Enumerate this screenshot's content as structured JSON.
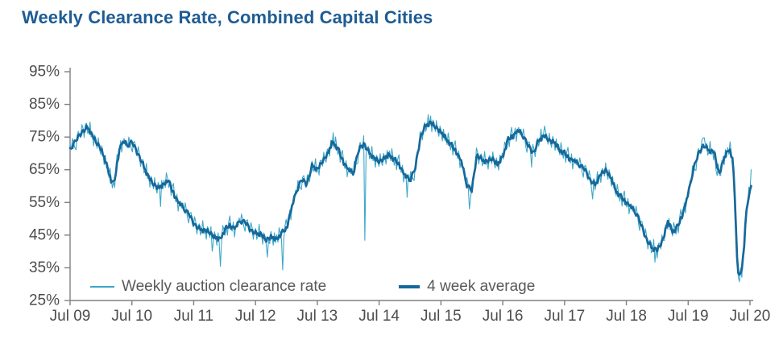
{
  "page": {
    "title": "Weekly Clearance Rate, Combined Capital Cities"
  },
  "colors": {
    "title_text": "#1e5c94",
    "axis_line": "#808080",
    "tick_label": "#4d4d4d",
    "legend_text": "#595959",
    "weekly_line": "#3da7c9",
    "avg_line": "#16689a",
    "background": "#ffffff"
  },
  "chart_data": {
    "type": "line",
    "title": "Weekly Clearance Rate, Combined Capital Cities",
    "grid": "off",
    "legend_position": "bottom-inside",
    "y_axis": {
      "min": 25,
      "max": 95,
      "tick_step": 10,
      "format": "percent",
      "ticks": [
        {
          "label": "95%",
          "value": 95
        },
        {
          "label": "85%",
          "value": 85
        },
        {
          "label": "75%",
          "value": 75
        },
        {
          "label": "65%",
          "value": 65
        },
        {
          "label": "55%",
          "value": 55
        },
        {
          "label": "45%",
          "value": 45
        },
        {
          "label": "35%",
          "value": 35
        },
        {
          "label": "25%",
          "value": 25
        }
      ]
    },
    "x_axis": {
      "unit": "years since Jul 2009",
      "range": [
        0,
        11
      ],
      "ticks": [
        {
          "label": "Jul 09",
          "t": 0
        },
        {
          "label": "Jul 10",
          "t": 1
        },
        {
          "label": "Jul 11",
          "t": 2
        },
        {
          "label": "Jul 12",
          "t": 3
        },
        {
          "label": "Jul 13",
          "t": 4
        },
        {
          "label": "Jul 14",
          "t": 5
        },
        {
          "label": "Jul 15",
          "t": 6
        },
        {
          "label": "Jul 16",
          "t": 7
        },
        {
          "label": "Jul 17",
          "t": 8
        },
        {
          "label": "Jul 18",
          "t": 9
        },
        {
          "label": "Jul 19",
          "t": 10
        },
        {
          "label": "Jul 20",
          "t": 11
        }
      ]
    },
    "legend": [
      {
        "label": "Weekly auction clearance rate",
        "style": "thin"
      },
      {
        "label": "4 week average",
        "style": "thick"
      }
    ],
    "series": [
      {
        "name": "Weekly auction clearance rate",
        "derived_from": "4 week average control points plus weekly_noise_cycle and weekly_outliers"
      },
      {
        "name": "4 week average",
        "points": [
          [
            0,
            71.5
          ],
          [
            0.08,
            73.5
          ],
          [
            0.17,
            76
          ],
          [
            0.25,
            77.5
          ],
          [
            0.29,
            78
          ],
          [
            0.33,
            76.5
          ],
          [
            0.42,
            73.5
          ],
          [
            0.5,
            71.5
          ],
          [
            0.58,
            67
          ],
          [
            0.67,
            61.5
          ],
          [
            0.71,
            60.5
          ],
          [
            0.79,
            70.5
          ],
          [
            0.83,
            73
          ],
          [
            0.88,
            73.5
          ],
          [
            0.92,
            72.5
          ],
          [
            1,
            73.5
          ],
          [
            1.08,
            70.5
          ],
          [
            1.17,
            67
          ],
          [
            1.25,
            63.5
          ],
          [
            1.33,
            61
          ],
          [
            1.42,
            59.5
          ],
          [
            1.5,
            60
          ],
          [
            1.58,
            62
          ],
          [
            1.67,
            58
          ],
          [
            1.75,
            55
          ],
          [
            1.83,
            53.5
          ],
          [
            1.92,
            51.5
          ],
          [
            2,
            48.5
          ],
          [
            2.08,
            47
          ],
          [
            2.17,
            46.5
          ],
          [
            2.25,
            46
          ],
          [
            2.33,
            44.5
          ],
          [
            2.42,
            43.5
          ],
          [
            2.5,
            46.5
          ],
          [
            2.58,
            48
          ],
          [
            2.67,
            47
          ],
          [
            2.75,
            49.5
          ],
          [
            2.83,
            49
          ],
          [
            2.92,
            46.5
          ],
          [
            3,
            45.5
          ],
          [
            3.08,
            45.5
          ],
          [
            3.17,
            43.5
          ],
          [
            3.25,
            44.5
          ],
          [
            3.33,
            43.5
          ],
          [
            3.42,
            45.5
          ],
          [
            3.5,
            47
          ],
          [
            3.58,
            53
          ],
          [
            3.67,
            59
          ],
          [
            3.75,
            62
          ],
          [
            3.83,
            60.5
          ],
          [
            3.92,
            66.5
          ],
          [
            4,
            65
          ],
          [
            4.08,
            67.5
          ],
          [
            4.17,
            70
          ],
          [
            4.25,
            73.5
          ],
          [
            4.33,
            71.5
          ],
          [
            4.42,
            67.5
          ],
          [
            4.5,
            65
          ],
          [
            4.58,
            64
          ],
          [
            4.67,
            71
          ],
          [
            4.75,
            73
          ],
          [
            4.83,
            70.5
          ],
          [
            4.92,
            68.5
          ],
          [
            5,
            67.5
          ],
          [
            5.08,
            68.5
          ],
          [
            5.17,
            69.5
          ],
          [
            5.25,
            68
          ],
          [
            5.33,
            66.5
          ],
          [
            5.42,
            63
          ],
          [
            5.5,
            62
          ],
          [
            5.58,
            65
          ],
          [
            5.67,
            75
          ],
          [
            5.75,
            78.5
          ],
          [
            5.83,
            79.5
          ],
          [
            5.92,
            78
          ],
          [
            6,
            76.5
          ],
          [
            6.08,
            74.5
          ],
          [
            6.17,
            72.5
          ],
          [
            6.25,
            70.5
          ],
          [
            6.33,
            67.5
          ],
          [
            6.42,
            60.5
          ],
          [
            6.5,
            58.5
          ],
          [
            6.58,
            69.5
          ],
          [
            6.67,
            68
          ],
          [
            6.75,
            67.5
          ],
          [
            6.83,
            68.5
          ],
          [
            6.92,
            66.5
          ],
          [
            7,
            69
          ],
          [
            7.08,
            74
          ],
          [
            7.17,
            75.5
          ],
          [
            7.25,
            77
          ],
          [
            7.33,
            75.5
          ],
          [
            7.42,
            72
          ],
          [
            7.5,
            70
          ],
          [
            7.58,
            74
          ],
          [
            7.67,
            75.5
          ],
          [
            7.75,
            74
          ],
          [
            7.83,
            73.5
          ],
          [
            7.92,
            71
          ],
          [
            8,
            70
          ],
          [
            8.08,
            68.5
          ],
          [
            8.17,
            67.5
          ],
          [
            8.25,
            66.5
          ],
          [
            8.33,
            65
          ],
          [
            8.42,
            61.5
          ],
          [
            8.5,
            60.5
          ],
          [
            8.58,
            63.5
          ],
          [
            8.67,
            65
          ],
          [
            8.75,
            62.5
          ],
          [
            8.83,
            58.5
          ],
          [
            8.92,
            56.5
          ],
          [
            9,
            55
          ],
          [
            9.08,
            53.5
          ],
          [
            9.17,
            51.5
          ],
          [
            9.25,
            47.5
          ],
          [
            9.33,
            43.5
          ],
          [
            9.42,
            41
          ],
          [
            9.5,
            40.5
          ],
          [
            9.58,
            43
          ],
          [
            9.67,
            49
          ],
          [
            9.75,
            46
          ],
          [
            9.83,
            47.5
          ],
          [
            9.92,
            52
          ],
          [
            10,
            57.5
          ],
          [
            10.08,
            65
          ],
          [
            10.17,
            70
          ],
          [
            10.25,
            72.5
          ],
          [
            10.33,
            71
          ],
          [
            10.42,
            70.5
          ],
          [
            10.5,
            63.5
          ],
          [
            10.58,
            68.5
          ],
          [
            10.67,
            71.5
          ],
          [
            10.72,
            68
          ],
          [
            10.76,
            55
          ],
          [
            10.79,
            38
          ],
          [
            10.82,
            32.5
          ],
          [
            10.86,
            33.5
          ],
          [
            10.9,
            40
          ],
          [
            10.94,
            52
          ],
          [
            10.98,
            57.5
          ],
          [
            11.02,
            59.5
          ]
        ]
      }
    ],
    "weekly_step_years": 0.019,
    "weekly_noise_cycle": [
      1.2,
      -0.8,
      2.1,
      0.4,
      -1.6,
      -2.8,
      0.9,
      1.8,
      -0.3,
      -1.2,
      2.4,
      1.1,
      -2.2,
      0.6,
      1.5,
      -1.8,
      -0.4,
      2.8,
      -1.1,
      0.3,
      -2.5,
      1.4,
      0.8,
      -1.5,
      2.2,
      -0.6,
      -1.9,
      1.6,
      0.2,
      -2.1,
      1.9,
      -0.9,
      1.3,
      -1.4,
      2.6,
      0.5,
      -1.7,
      0.8,
      -2.4,
      1.2,
      2.9,
      -0.5,
      -1.3,
      1.7,
      -2.7,
      0.4,
      1.1,
      -0.7
    ],
    "weekly_outliers": [
      [
        0.25,
        1.5
      ],
      [
        1.46,
        -6
      ],
      [
        2.3,
        -5
      ],
      [
        2.44,
        -8.5
      ],
      [
        3.2,
        -5.5
      ],
      [
        3.44,
        -11.5
      ],
      [
        4.25,
        3
      ],
      [
        4.77,
        -29
      ],
      [
        5.46,
        -6
      ],
      [
        5.83,
        2
      ],
      [
        6.46,
        -6.5
      ],
      [
        6.58,
        3
      ],
      [
        7.46,
        -5
      ],
      [
        7.67,
        3
      ],
      [
        8.46,
        -5
      ],
      [
        9.46,
        -4
      ],
      [
        10.25,
        2.5
      ],
      [
        10.46,
        -3
      ],
      [
        10.82,
        -2
      ],
      [
        11.02,
        5.5
      ]
    ]
  }
}
